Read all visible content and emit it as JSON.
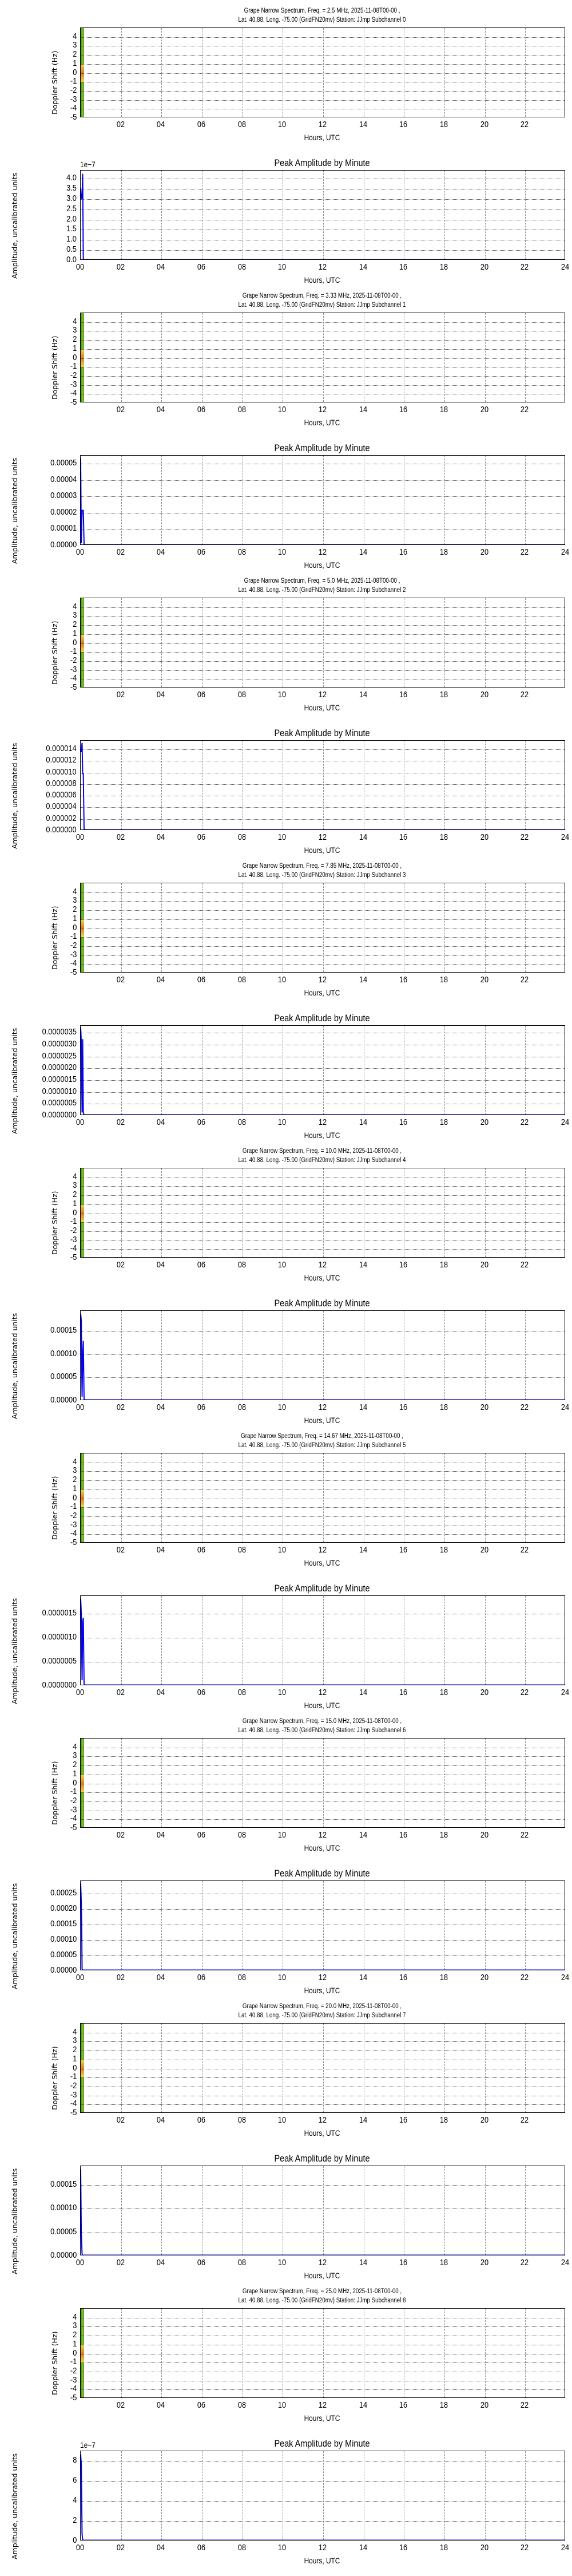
{
  "common": {
    "spectrum_title_prefix": "Grape Narrow Spectrum",
    "date": "2025-11-08T00-00",
    "location_line_prefix": "Lat.  40.88, Long. -75.00 (GridFN20mv) Station: JJmp",
    "spec_ylabel": "Doppler Shift (Hz)",
    "amp_title": "Peak Amplitude by Minute",
    "amp_ylabel": "Amplitude, uncalibrated units",
    "xlabel": "Hours, UTC",
    "spec_xticks": [
      "02",
      "04",
      "06",
      "08",
      "10",
      "12",
      "14",
      "16",
      "18",
      "20",
      "22"
    ],
    "amp_xticks": [
      "00",
      "02",
      "04",
      "06",
      "08",
      "10",
      "12",
      "14",
      "16",
      "18",
      "20",
      "22",
      "24"
    ],
    "spec_yticks": [
      "4",
      "3",
      "2",
      "1",
      "0",
      "-1",
      "-2",
      "-3",
      "-4",
      "-5"
    ],
    "colors": {
      "trace": "#0000ff",
      "spectrogram_green": "#5aa51e",
      "spectrogram_hot": "#e07a2a"
    }
  },
  "panels": [
    {
      "subchannel": 0,
      "spec_title": "Grape Narrow Spectrum, Freq. = 2.5 MHz, 2025-11-08T00-00 ,",
      "spec_subtitle": "Lat.  40.88, Long. -75.00 (GridFN20mv) Station: JJmp Subchannel 0",
      "amp_offset": "1e−7",
      "amp_yticks": [
        "4.0",
        "3.5",
        "3.0",
        "2.5",
        "2.0",
        "1.5",
        "1.0",
        "0.5",
        "0.0"
      ],
      "amp_ymax": 4.4
    },
    {
      "subchannel": 1,
      "spec_title": "Grape Narrow Spectrum, Freq. = 3.33 MHz, 2025-11-08T00-00 ,",
      "spec_subtitle": "Lat.  40.88, Long. -75.00 (GridFN20mv) Station: JJmp Subchannel 1",
      "amp_offset": "",
      "amp_yticks": [
        "0.00005",
        "0.00004",
        "0.00003",
        "0.00002",
        "0.00001",
        "0.00000"
      ],
      "amp_ymax": 5.5e-05
    },
    {
      "subchannel": 2,
      "spec_title": "Grape Narrow Spectrum, Freq. = 5.0 MHz, 2025-11-08T00-00 ,",
      "spec_subtitle": "Lat.  40.88, Long. -75.00 (GridFN20mv) Station: JJmp Subchannel 2",
      "amp_offset": "",
      "amp_yticks": [
        "0.000014",
        "0.000012",
        "0.000010",
        "0.000008",
        "0.000006",
        "0.000004",
        "0.000002",
        "0.000000"
      ],
      "amp_ymax": 1.55e-05
    },
    {
      "subchannel": 3,
      "spec_title": "Grape Narrow Spectrum, Freq. = 7.85 MHz, 2025-11-08T00-00 ,",
      "spec_subtitle": "Lat.  40.88, Long. -75.00 (GridFN20mv) Station: JJmp Subchannel 3",
      "amp_offset": "",
      "amp_yticks": [
        "0.0000035",
        "0.0000030",
        "0.0000025",
        "0.0000020",
        "0.0000015",
        "0.0000010",
        "0.0000005",
        "0.0000000"
      ],
      "amp_ymax": 3.8e-06
    },
    {
      "subchannel": 4,
      "spec_title": "Grape Narrow Spectrum, Freq. = 10.0 MHz, 2025-11-08T00-00 ,",
      "spec_subtitle": "Lat.  40.88, Long. -75.00 (GridFN20mv) Station: JJmp Subchannel 4",
      "amp_offset": "",
      "amp_yticks": [
        "",
        "0.00015",
        "0.00010",
        "0.00005",
        "0.00000"
      ],
      "amp_ymax": 0.000193
    },
    {
      "subchannel": 5,
      "spec_title": "Grape Narrow Spectrum, Freq. = 14.67 MHz, 2025-11-08T00-00 ,",
      "spec_subtitle": "Lat.  40.88, Long. -75.00 (GridFN20mv) Station: JJmp Subchannel 5",
      "amp_offset": "",
      "amp_yticks": [
        "",
        "0.0000015",
        "0.0000010",
        "0.0000005",
        "0.0000000"
      ],
      "amp_ymax": 1.87e-06
    },
    {
      "subchannel": 6,
      "spec_title": "Grape Narrow Spectrum, Freq. = 15.0 MHz, 2025-11-08T00-00 ,",
      "spec_subtitle": "Lat.  40.88, Long. -75.00 (GridFN20mv) Station: JJmp Subchannel 6",
      "amp_offset": "",
      "amp_yticks": [
        "",
        "0.00025",
        "0.00020",
        "0.00015",
        "0.00010",
        "0.00005",
        "0.00000"
      ],
      "amp_ymax": 0.00029
    },
    {
      "subchannel": 7,
      "spec_title": "Grape Narrow Spectrum, Freq. = 20.0 MHz, 2025-11-08T00-00 ,",
      "spec_subtitle": "Lat.  40.88, Long. -75.00 (GridFN20mv) Station: JJmp Subchannel 7",
      "amp_offset": "",
      "amp_yticks": [
        "",
        "0.00015",
        "0.00010",
        "0.00005",
        "0.00000"
      ],
      "amp_ymax": 0.00019
    },
    {
      "subchannel": 8,
      "spec_title": "Grape Narrow Spectrum, Freq. = 25.0 MHz, 2025-11-08T00-00 ,",
      "spec_subtitle": "Lat.  40.88, Long. -75.00 (GridFN20mv) Station: JJmp Subchannel 8",
      "amp_offset": "1e−7",
      "amp_yticks": [
        "",
        "8",
        "6",
        "4",
        "2",
        "0"
      ],
      "amp_ymax": 9.0
    }
  ],
  "chart_data": [
    {
      "type": "heatmap",
      "title": "Grape Narrow Spectrum, Freq. = 2.5 MHz, 2025-11-08T00-00 , Lat.  40.88, Long. -75.00 (GridFN20mv) Station: JJmp Subchannel 0",
      "xlabel": "Hours, UTC",
      "ylabel": "Doppler Shift (Hz)",
      "xlim": [
        0,
        24
      ],
      "ylim": [
        -5,
        5
      ],
      "xticks": [
        "02",
        "04",
        "06",
        "08",
        "10",
        "12",
        "14",
        "16",
        "18",
        "20",
        "22"
      ],
      "yticks": [
        4,
        3,
        2,
        1,
        0,
        -1,
        -2,
        -3,
        -4,
        -5
      ],
      "grid": true,
      "note": "data only in first ~0.2 h, peak near 0 Hz"
    },
    {
      "type": "line",
      "title": "Peak Amplitude by Minute",
      "xlabel": "Hours, UTC",
      "ylabel": "Amplitude, uncalibrated units",
      "offset_label": "1e-7",
      "x": [
        0,
        0.03,
        0.07,
        0.1,
        0.13,
        0.17,
        0.2,
        24
      ],
      "values": [
        3.5e-07,
        3e-07,
        3e-07,
        4.2e-07,
        5e-09,
        0,
        0,
        0
      ],
      "xlim": [
        0,
        24
      ],
      "ylim": [
        0,
        4.4e-07
      ],
      "grid": true
    },
    {
      "type": "heatmap",
      "title": "Grape Narrow Spectrum, Freq. = 3.33 MHz, 2025-11-08T00-00 , Lat.  40.88, Long. -75.00 (GridFN20mv) Station: JJmp Subchannel 1",
      "xlabel": "Hours, UTC",
      "ylabel": "Doppler Shift (Hz)",
      "xlim": [
        0,
        24
      ],
      "ylim": [
        -5,
        5
      ],
      "grid": true
    },
    {
      "type": "line",
      "title": "Peak Amplitude by Minute",
      "xlabel": "Hours, UTC",
      "ylabel": "Amplitude, uncalibrated units",
      "x": [
        0,
        0.03,
        0.07,
        0.1,
        0.13,
        0.17,
        0.2,
        24
      ],
      "values": [
        5.3e-05,
        1e-06,
        2.1e-05,
        2.1e-05,
        2.1e-05,
        0,
        0,
        0
      ],
      "xlim": [
        0,
        24
      ],
      "ylim": [
        0,
        5.5e-05
      ],
      "grid": true
    },
    {
      "type": "heatmap",
      "title": "Grape Narrow Spectrum, Freq. = 5.0 MHz, 2025-11-08T00-00 , Lat.  40.88, Long. -75.00 (GridFN20mv) Station: JJmp Subchannel 2",
      "xlabel": "Hours, UTC",
      "ylabel": "Doppler Shift (Hz)",
      "xlim": [
        0,
        24
      ],
      "ylim": [
        -5,
        5
      ],
      "grid": true
    },
    {
      "type": "line",
      "title": "Peak Amplitude by Minute",
      "xlabel": "Hours, UTC",
      "ylabel": "Amplitude, uncalibrated units",
      "x": [
        0,
        0.03,
        0.07,
        0.1,
        0.13,
        0.17,
        0.2,
        24
      ],
      "values": [
        1.35e-05,
        1.35e-05,
        1.5e-05,
        9.7e-06,
        9.7e-06,
        0,
        0,
        0
      ],
      "xlim": [
        0,
        24
      ],
      "ylim": [
        0,
        1.55e-05
      ],
      "grid": true
    },
    {
      "type": "heatmap",
      "title": "Grape Narrow Spectrum, Freq. = 7.85 MHz, 2025-11-08T00-00 , Lat.  40.88, Long. -75.00 (GridFN20mv) Station: JJmp Subchannel 3",
      "xlabel": "Hours, UTC",
      "ylabel": "Doppler Shift (Hz)",
      "xlim": [
        0,
        24
      ],
      "ylim": [
        -5,
        5
      ],
      "grid": true
    },
    {
      "type": "line",
      "title": "Peak Amplitude by Minute",
      "xlabel": "Hours, UTC",
      "ylabel": "Amplitude, uncalibrated units",
      "x": [
        0,
        0.03,
        0.07,
        0.1,
        0.13,
        0.17,
        0.2,
        24
      ],
      "values": [
        3.7e-06,
        3.1e-06,
        1e-07,
        3.2e-06,
        1e-07,
        0,
        0,
        0
      ],
      "xlim": [
        0,
        24
      ],
      "ylim": [
        0,
        3.8e-06
      ],
      "grid": true
    },
    {
      "type": "heatmap",
      "title": "Grape Narrow Spectrum, Freq. = 10.0 MHz, 2025-11-08T00-00 , Lat.  40.88, Long. -75.00 (GridFN20mv) Station: JJmp Subchannel 4",
      "xlabel": "Hours, UTC",
      "ylabel": "Doppler Shift (Hz)",
      "xlim": [
        0,
        24
      ],
      "ylim": [
        -5,
        5
      ],
      "grid": true
    },
    {
      "type": "line",
      "title": "Peak Amplitude by Minute",
      "xlabel": "Hours, UTC",
      "ylabel": "Amplitude, uncalibrated units",
      "x": [
        0,
        0.03,
        0.07,
        0.1,
        0.13,
        0.17,
        0.2,
        24
      ],
      "values": [
        0.000185,
        0.00017,
        7e-06,
        9e-05,
        0.000127,
        0,
        0,
        0
      ],
      "xlim": [
        0,
        24
      ],
      "ylim": [
        0,
        0.000193
      ],
      "grid": true
    },
    {
      "type": "heatmap",
      "title": "Grape Narrow Spectrum, Freq. = 14.67 MHz, 2025-11-08T00-00 , Lat.  40.88, Long. -75.00 (GridFN20mv) Station: JJmp Subchannel 5",
      "xlabel": "Hours, UTC",
      "ylabel": "Doppler Shift (Hz)",
      "xlim": [
        0,
        24
      ],
      "ylim": [
        -5,
        5
      ],
      "grid": true
    },
    {
      "type": "line",
      "title": "Peak Amplitude by Minute",
      "xlabel": "Hours, UTC",
      "ylabel": "Amplitude, uncalibrated units",
      "x": [
        0,
        0.03,
        0.07,
        0.1,
        0.13,
        0.17,
        0.2,
        24
      ],
      "values": [
        1.8e-06,
        1.5e-06,
        1e-07,
        1.3e-06,
        1.4e-06,
        0,
        0,
        0
      ],
      "xlim": [
        0,
        24
      ],
      "ylim": [
        0,
        1.87e-06
      ],
      "grid": true
    },
    {
      "type": "heatmap",
      "title": "Grape Narrow Spectrum, Freq. = 15.0 MHz, 2025-11-08T00-00 , Lat.  40.88, Long. -75.00 (GridFN20mv) Station: JJmp Subchannel 6",
      "xlabel": "Hours, UTC",
      "ylabel": "Doppler Shift (Hz)",
      "xlim": [
        0,
        24
      ],
      "ylim": [
        -5,
        5
      ],
      "grid": true
    },
    {
      "type": "line",
      "title": "Peak Amplitude by Minute",
      "xlabel": "Hours, UTC",
      "ylabel": "Amplitude, uncalibrated units",
      "x": [
        0,
        0.03,
        0.05,
        0.07,
        0.1,
        24
      ],
      "values": [
        0.00028,
        0.00022,
        0.00015,
        3e-06,
        0,
        0
      ],
      "xlim": [
        0,
        24
      ],
      "ylim": [
        0,
        0.00029
      ],
      "grid": true
    },
    {
      "type": "heatmap",
      "title": "Grape Narrow Spectrum, Freq. = 20.0 MHz, 2025-11-08T00-00 , Lat.  40.88, Long. -75.00 (GridFN20mv) Station: JJmp Subchannel 7",
      "xlabel": "Hours, UTC",
      "ylabel": "Doppler Shift (Hz)",
      "xlim": [
        0,
        24
      ],
      "ylim": [
        -5,
        5
      ],
      "grid": true
    },
    {
      "type": "line",
      "title": "Peak Amplitude by Minute",
      "xlabel": "Hours, UTC",
      "ylabel": "Amplitude, uncalibrated units",
      "x": [
        0,
        0.03,
        0.07,
        0.1,
        24
      ],
      "values": [
        0.000182,
        5e-05,
        2e-06,
        0,
        0
      ],
      "xlim": [
        0,
        24
      ],
      "ylim": [
        0,
        0.00019
      ],
      "grid": true
    },
    {
      "type": "heatmap",
      "title": "Grape Narrow Spectrum, Freq. = 25.0 MHz, 2025-11-08T00-00 , Lat.  40.88, Long. -75.00 (GridFN20mv) Station: JJmp Subchannel 8",
      "xlabel": "Hours, UTC",
      "ylabel": "Doppler Shift (Hz)",
      "xlim": [
        0,
        24
      ],
      "ylim": [
        -5,
        5
      ],
      "grid": true
    },
    {
      "type": "line",
      "title": "Peak Amplitude by Minute",
      "xlabel": "Hours, UTC",
      "ylabel": "Amplitude, uncalibrated units",
      "offset_label": "1e-7",
      "x": [
        0,
        0.03,
        0.07,
        0.1,
        0.13,
        24
      ],
      "values": [
        8.6e-07,
        7.6e-07,
        6e-08,
        5e-09,
        0,
        0
      ],
      "xlim": [
        0,
        24
      ],
      "ylim": [
        0,
        9e-07
      ],
      "grid": true
    }
  ]
}
